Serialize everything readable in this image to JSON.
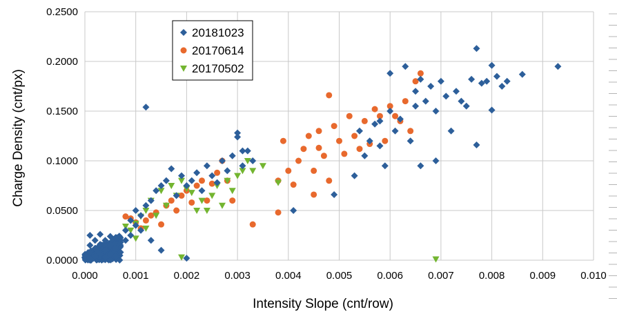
{
  "chart_data": {
    "type": "scatter",
    "xlabel": "Intensity Slope (cnt/row)",
    "ylabel": "Charge Density (cnt/px)",
    "xlim": [
      0,
      0.01
    ],
    "ylim": [
      0,
      0.25
    ],
    "x_ticks": [
      "0.000",
      "0.001",
      "0.002",
      "0.003",
      "0.004",
      "0.005",
      "0.006",
      "0.007",
      "0.008",
      "0.009",
      "0.010"
    ],
    "y_ticks": [
      "0.0000",
      "0.0500",
      "0.1000",
      "0.1500",
      "0.2000",
      "0.2500"
    ],
    "grid": true,
    "legend_position": "top-left",
    "series": [
      {
        "name": "20181023",
        "marker": "diamond",
        "color": "#2d5f9a",
        "points": [
          [
            0.0001,
            0.002
          ],
          [
            0.0001,
            0.008
          ],
          [
            0.0001,
            0.015
          ],
          [
            0.0001,
            0.025
          ],
          [
            0.0002,
            0.004
          ],
          [
            0.0002,
            0.012
          ],
          [
            0.0002,
            0.02
          ],
          [
            0.0003,
            0.006
          ],
          [
            0.0003,
            0.016
          ],
          [
            0.0003,
            0.026
          ],
          [
            0.0004,
            0.003
          ],
          [
            0.0004,
            0.01
          ],
          [
            0.0004,
            0.02
          ],
          [
            0.0005,
            0.006
          ],
          [
            0.0005,
            0.015
          ],
          [
            0.0005,
            0.024
          ],
          [
            0.0006,
            0.004
          ],
          [
            0.0006,
            0.012
          ],
          [
            0.0007,
            0.008
          ],
          [
            0.0007,
            0.018
          ],
          [
            0.0008,
            0.02
          ],
          [
            0.0008,
            0.03
          ],
          [
            0.0009,
            0.025
          ],
          [
            0.0009,
            0.04
          ],
          [
            0.001,
            0.035
          ],
          [
            0.001,
            0.05
          ],
          [
            0.0011,
            0.045
          ],
          [
            0.0011,
            0.03
          ],
          [
            0.0012,
            0.154
          ],
          [
            0.0012,
            0.055
          ],
          [
            0.0013,
            0.06
          ],
          [
            0.0013,
            0.02
          ],
          [
            0.0014,
            0.07
          ],
          [
            0.0015,
            0.075
          ],
          [
            0.0015,
            0.01
          ],
          [
            0.0016,
            0.08
          ],
          [
            0.0017,
            0.092
          ],
          [
            0.0018,
            0.065
          ],
          [
            0.0019,
            0.085
          ],
          [
            0.002,
            0.075
          ],
          [
            0.002,
            0.002
          ],
          [
            0.0021,
            0.08
          ],
          [
            0.0022,
            0.088
          ],
          [
            0.0023,
            0.07
          ],
          [
            0.0024,
            0.095
          ],
          [
            0.0025,
            0.085
          ],
          [
            0.0026,
            0.078
          ],
          [
            0.0027,
            0.1
          ],
          [
            0.0028,
            0.09
          ],
          [
            0.0029,
            0.105
          ],
          [
            0.003,
            0.124
          ],
          [
            0.003,
            0.128
          ],
          [
            0.0031,
            0.095
          ],
          [
            0.0031,
            0.11
          ],
          [
            0.0032,
            0.11
          ],
          [
            0.0033,
            0.1
          ],
          [
            0.0041,
            0.05
          ],
          [
            0.0049,
            0.066
          ],
          [
            0.0053,
            0.085
          ],
          [
            0.0054,
            0.13
          ],
          [
            0.0055,
            0.105
          ],
          [
            0.0056,
            0.12
          ],
          [
            0.0057,
            0.137
          ],
          [
            0.0058,
            0.14
          ],
          [
            0.0058,
            0.115
          ],
          [
            0.0059,
            0.095
          ],
          [
            0.006,
            0.188
          ],
          [
            0.006,
            0.15
          ],
          [
            0.0061,
            0.13
          ],
          [
            0.0062,
            0.142
          ],
          [
            0.0063,
            0.195
          ],
          [
            0.0064,
            0.12
          ],
          [
            0.0065,
            0.155
          ],
          [
            0.0065,
            0.17
          ],
          [
            0.0066,
            0.095
          ],
          [
            0.0066,
            0.182
          ],
          [
            0.0067,
            0.16
          ],
          [
            0.0068,
            0.175
          ],
          [
            0.0069,
            0.15
          ],
          [
            0.0069,
            0.1
          ],
          [
            0.007,
            0.18
          ],
          [
            0.0071,
            0.165
          ],
          [
            0.0072,
            0.13
          ],
          [
            0.0073,
            0.17
          ],
          [
            0.0074,
            0.16
          ],
          [
            0.0075,
            0.155
          ],
          [
            0.0076,
            0.182
          ],
          [
            0.0077,
            0.213
          ],
          [
            0.0077,
            0.116
          ],
          [
            0.0078,
            0.178
          ],
          [
            0.0079,
            0.18
          ],
          [
            0.008,
            0.196
          ],
          [
            0.008,
            0.151
          ],
          [
            0.0081,
            0.185
          ],
          [
            0.0082,
            0.175
          ],
          [
            0.0083,
            0.18
          ],
          [
            0.0086,
            0.187
          ],
          [
            0.0093,
            0.195
          ]
        ]
      },
      {
        "name": "20170614",
        "marker": "circle",
        "color": "#e8692d",
        "points": [
          [
            0.0008,
            0.044
          ],
          [
            0.0009,
            0.042
          ],
          [
            0.001,
            0.038
          ],
          [
            0.0011,
            0.032
          ],
          [
            0.0012,
            0.04
          ],
          [
            0.0013,
            0.045
          ],
          [
            0.0014,
            0.048
          ],
          [
            0.0015,
            0.036
          ],
          [
            0.0016,
            0.055
          ],
          [
            0.0017,
            0.06
          ],
          [
            0.0018,
            0.05
          ],
          [
            0.0019,
            0.065
          ],
          [
            0.002,
            0.07
          ],
          [
            0.0021,
            0.058
          ],
          [
            0.0022,
            0.075
          ],
          [
            0.0023,
            0.08
          ],
          [
            0.0024,
            0.06
          ],
          [
            0.0025,
            0.077
          ],
          [
            0.0026,
            0.088
          ],
          [
            0.0027,
            0.1
          ],
          [
            0.0028,
            0.08
          ],
          [
            0.0029,
            0.06
          ],
          [
            0.0033,
            0.036
          ],
          [
            0.0038,
            0.08
          ],
          [
            0.0038,
            0.048
          ],
          [
            0.0039,
            0.12
          ],
          [
            0.004,
            0.09
          ],
          [
            0.0041,
            0.076
          ],
          [
            0.0042,
            0.1
          ],
          [
            0.0043,
            0.112
          ],
          [
            0.0044,
            0.125
          ],
          [
            0.0045,
            0.09
          ],
          [
            0.0045,
            0.066
          ],
          [
            0.0046,
            0.13
          ],
          [
            0.0046,
            0.113
          ],
          [
            0.0047,
            0.105
          ],
          [
            0.0048,
            0.166
          ],
          [
            0.0048,
            0.08
          ],
          [
            0.0049,
            0.135
          ],
          [
            0.005,
            0.12
          ],
          [
            0.0051,
            0.107
          ],
          [
            0.0052,
            0.145
          ],
          [
            0.0053,
            0.125
          ],
          [
            0.0054,
            0.112
          ],
          [
            0.0055,
            0.14
          ],
          [
            0.0056,
            0.117
          ],
          [
            0.0057,
            0.152
          ],
          [
            0.0058,
            0.145
          ],
          [
            0.0059,
            0.12
          ],
          [
            0.006,
            0.155
          ],
          [
            0.0061,
            0.145
          ],
          [
            0.0062,
            0.14
          ],
          [
            0.0063,
            0.16
          ],
          [
            0.0064,
            0.13
          ],
          [
            0.0065,
            0.18
          ],
          [
            0.0066,
            0.188
          ]
        ]
      },
      {
        "name": "20170502",
        "marker": "triangle-down",
        "color": "#73b530",
        "points": [
          [
            0.0008,
            0.034
          ],
          [
            0.0009,
            0.03
          ],
          [
            0.001,
            0.037
          ],
          [
            0.001,
            0.022
          ],
          [
            0.0011,
            0.044
          ],
          [
            0.0012,
            0.05
          ],
          [
            0.0012,
            0.032
          ],
          [
            0.0013,
            0.06
          ],
          [
            0.0014,
            0.045
          ],
          [
            0.0015,
            0.07
          ],
          [
            0.0016,
            0.055
          ],
          [
            0.0017,
            0.075
          ],
          [
            0.0018,
            0.065
          ],
          [
            0.0019,
            0.08
          ],
          [
            0.0019,
            0.003
          ],
          [
            0.002,
            0.072
          ],
          [
            0.0021,
            0.068
          ],
          [
            0.0022,
            0.05
          ],
          [
            0.0023,
            0.06
          ],
          [
            0.0024,
            0.05
          ],
          [
            0.0025,
            0.065
          ],
          [
            0.0026,
            0.075
          ],
          [
            0.0027,
            0.055
          ],
          [
            0.0028,
            0.08
          ],
          [
            0.0029,
            0.07
          ],
          [
            0.003,
            0.085
          ],
          [
            0.0031,
            0.09
          ],
          [
            0.0032,
            0.1
          ],
          [
            0.0033,
            0.09
          ],
          [
            0.0035,
            0.095
          ],
          [
            0.0038,
            0.078
          ],
          [
            0.0069,
            0.001
          ]
        ]
      }
    ]
  }
}
